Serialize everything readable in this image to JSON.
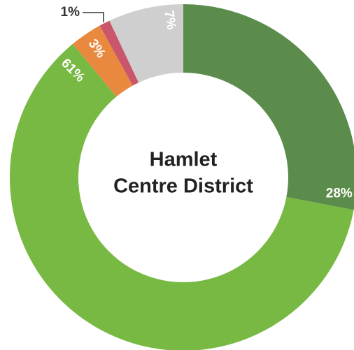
{
  "chart_data": {
    "type": "donut",
    "title": [
      "Hamlet",
      "Centre District"
    ],
    "values": [
      28,
      61,
      3,
      1,
      7
    ],
    "value_labels": [
      "28%",
      "61%",
      "3%",
      "1%",
      "7%"
    ],
    "colors": [
      "#5b8c4b",
      "#78b944",
      "#e8893f",
      "#c9566b",
      "#cfcfcf"
    ]
  }
}
